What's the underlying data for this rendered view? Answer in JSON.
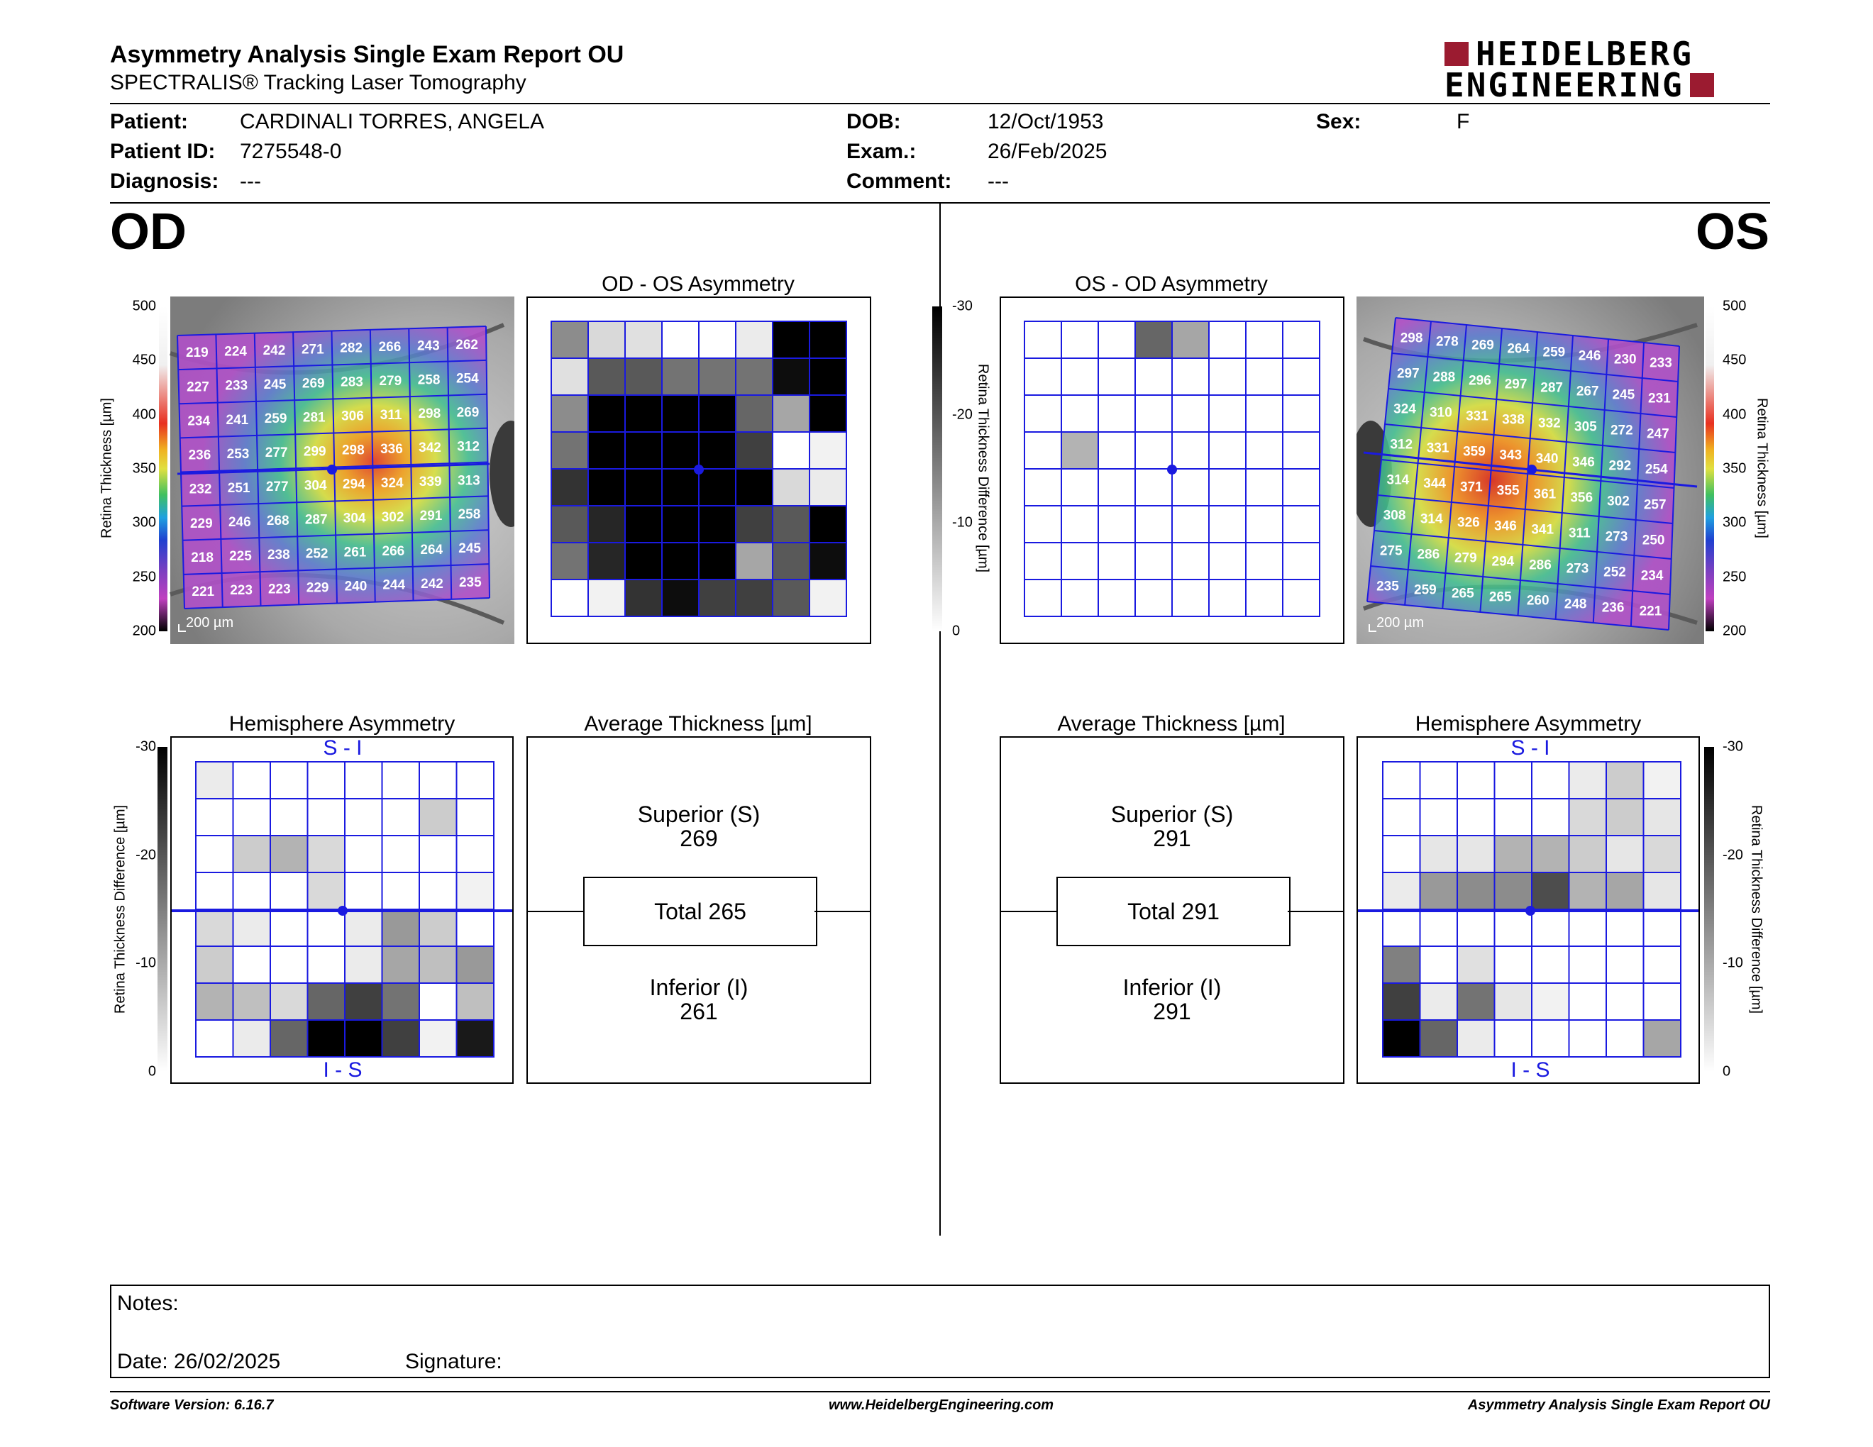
{
  "header": {
    "title": "Asymmetry Analysis Single Exam Report OU",
    "subtitle": "SPECTRALIS® Tracking Laser Tomography",
    "logo_line1": "HEIDELBERG",
    "logo_line2": "ENGINEERING"
  },
  "patient": {
    "patient_label": "Patient:",
    "patient_value": "CARDINALI TORRES, ANGELA",
    "id_label": "Patient ID:",
    "id_value": "7275548-0",
    "diagnosis_label": "Diagnosis:",
    "diagnosis_value": "---",
    "dob_label": "DOB:",
    "dob_value": "12/Oct/1953",
    "exam_label": "Exam.:",
    "exam_value": "26/Feb/2025",
    "comment_label": "Comment:",
    "comment_value": "---",
    "sex_label": "Sex:",
    "sex_value": "F"
  },
  "eyes": {
    "left": "OD",
    "right": "OS"
  },
  "titles": {
    "od_os": "OD - OS Asymmetry",
    "os_od": "OS - OD Asymmetry",
    "hemi": "Hemisphere Asymmetry",
    "avg": "Average Thickness [µm]"
  },
  "colorbar": {
    "thickness_label": "Retina Thickness [µm]",
    "thickness_ticks": [
      "500",
      "450",
      "400",
      "350",
      "300",
      "250",
      "200"
    ],
    "diff_label": "Retina Thickness Difference [µm]",
    "diff_ticks": [
      "-30",
      "-20",
      "-10",
      "0"
    ]
  },
  "scale_bar": "200 µm",
  "hemi_labels": {
    "top": "S - I",
    "bottom": "I - S"
  },
  "od": {
    "thickness": [
      [
        219,
        224,
        242,
        271,
        282,
        266,
        243,
        262
      ],
      [
        227,
        233,
        245,
        269,
        283,
        279,
        258,
        254
      ],
      [
        234,
        241,
        259,
        281,
        306,
        311,
        298,
        269
      ],
      [
        236,
        253,
        277,
        299,
        298,
        336,
        342,
        312
      ],
      [
        232,
        251,
        277,
        304,
        294,
        324,
        339,
        313
      ],
      [
        229,
        246,
        268,
        287,
        304,
        302,
        291,
        258
      ],
      [
        218,
        225,
        238,
        252,
        261,
        266,
        264,
        245
      ],
      [
        221,
        223,
        223,
        229,
        240,
        244,
        242,
        235
      ]
    ],
    "asym_gray": [
      [
        0.45,
        0.15,
        0.12,
        0,
        0,
        0.08,
        1,
        1
      ],
      [
        0.12,
        0.65,
        0.65,
        0.55,
        0.55,
        0.55,
        0.95,
        1
      ],
      [
        0.45,
        1,
        1,
        1,
        1,
        0.6,
        0.35,
        1
      ],
      [
        0.55,
        1,
        1,
        1,
        1,
        0.75,
        0,
        0.05
      ],
      [
        0.8,
        1,
        1,
        1,
        1,
        1,
        0.15,
        0.08
      ],
      [
        0.65,
        0.85,
        1,
        1,
        1,
        0.75,
        0.65,
        1
      ],
      [
        0.55,
        0.85,
        1,
        1,
        1,
        0.35,
        0.65,
        0.95
      ],
      [
        0,
        0.05,
        0.8,
        0.95,
        0.75,
        0.75,
        0.65,
        0.05
      ]
    ],
    "hemi_gray": [
      [
        0.08,
        0,
        0,
        0,
        0,
        0,
        0,
        0
      ],
      [
        0,
        0,
        0,
        0,
        0,
        0,
        0.2,
        0
      ],
      [
        0,
        0.2,
        0.3,
        0.15,
        0,
        0,
        0,
        0
      ],
      [
        0,
        0,
        0,
        0.15,
        0,
        0,
        0,
        0.05
      ],
      [
        0.15,
        0.08,
        0,
        0,
        0.08,
        0.4,
        0.2,
        0
      ],
      [
        0.2,
        0,
        0,
        0,
        0.08,
        0.35,
        0.25,
        0.4
      ],
      [
        0.3,
        0.25,
        0.15,
        0.6,
        0.75,
        0.55,
        0,
        0.25
      ],
      [
        0,
        0.08,
        0.6,
        1,
        1,
        0.75,
        0.05,
        0.9
      ]
    ],
    "summary": {
      "superior_label": "Superior (S)",
      "superior": "269",
      "total": "Total 265",
      "inferior_label": "Inferior (I)",
      "inferior": "261"
    }
  },
  "os": {
    "thickness": [
      [
        298,
        278,
        269,
        264,
        259,
        246,
        230,
        233
      ],
      [
        297,
        288,
        296,
        297,
        287,
        267,
        245,
        231
      ],
      [
        324,
        310,
        331,
        338,
        332,
        305,
        272,
        247
      ],
      [
        312,
        331,
        359,
        343,
        340,
        346,
        292,
        254
      ],
      [
        314,
        344,
        371,
        355,
        361,
        356,
        302,
        257
      ],
      [
        308,
        314,
        326,
        346,
        341,
        311,
        273,
        250
      ],
      [
        275,
        286,
        279,
        294,
        286,
        273,
        252,
        234
      ],
      [
        235,
        259,
        265,
        265,
        260,
        248,
        236,
        221
      ]
    ],
    "asym_gray": [
      [
        0,
        0,
        0,
        0.6,
        0.35,
        0,
        0,
        0
      ],
      [
        0,
        0,
        0,
        0,
        0,
        0,
        0,
        0
      ],
      [
        0,
        0,
        0,
        0,
        0,
        0,
        0,
        0
      ],
      [
        0,
        0.3,
        0,
        0,
        0,
        0,
        0,
        0
      ],
      [
        0,
        0,
        0,
        0,
        0,
        0,
        0,
        0
      ],
      [
        0,
        0,
        0,
        0,
        0,
        0,
        0,
        0
      ],
      [
        0,
        0,
        0,
        0,
        0,
        0,
        0,
        0
      ],
      [
        0,
        0,
        0,
        0,
        0,
        0,
        0,
        0
      ]
    ],
    "hemi_gray": [
      [
        0,
        0,
        0,
        0,
        0,
        0.08,
        0.2,
        0.05
      ],
      [
        0,
        0,
        0,
        0,
        0,
        0.15,
        0.2,
        0.1
      ],
      [
        0,
        0.1,
        0.1,
        0.3,
        0.3,
        0.2,
        0.1,
        0.15
      ],
      [
        0.08,
        0.4,
        0.45,
        0.45,
        0.7,
        0.3,
        0.35,
        0.1
      ],
      [
        0,
        0,
        0,
        0,
        0,
        0,
        0,
        0
      ],
      [
        0.5,
        0,
        0.12,
        0,
        0,
        0,
        0,
        0
      ],
      [
        0.75,
        0.08,
        0.55,
        0.1,
        0.05,
        0,
        0,
        0
      ],
      [
        1,
        0.6,
        0.08,
        0,
        0,
        0,
        0,
        0.35
      ]
    ],
    "summary": {
      "superior_label": "Superior (S)",
      "superior": "291",
      "total": "Total 291",
      "inferior_label": "Inferior (I)",
      "inferior": "291"
    }
  },
  "notes": {
    "notes_label": "Notes:",
    "date_label": "Date: 26/02/2025",
    "signature_label": "Signature:"
  },
  "footer": {
    "version": "Software Version: 6.16.7",
    "website": "www.HeidelbergEngineering.com",
    "report": "Asymmetry Analysis Single Exam Report OU"
  }
}
